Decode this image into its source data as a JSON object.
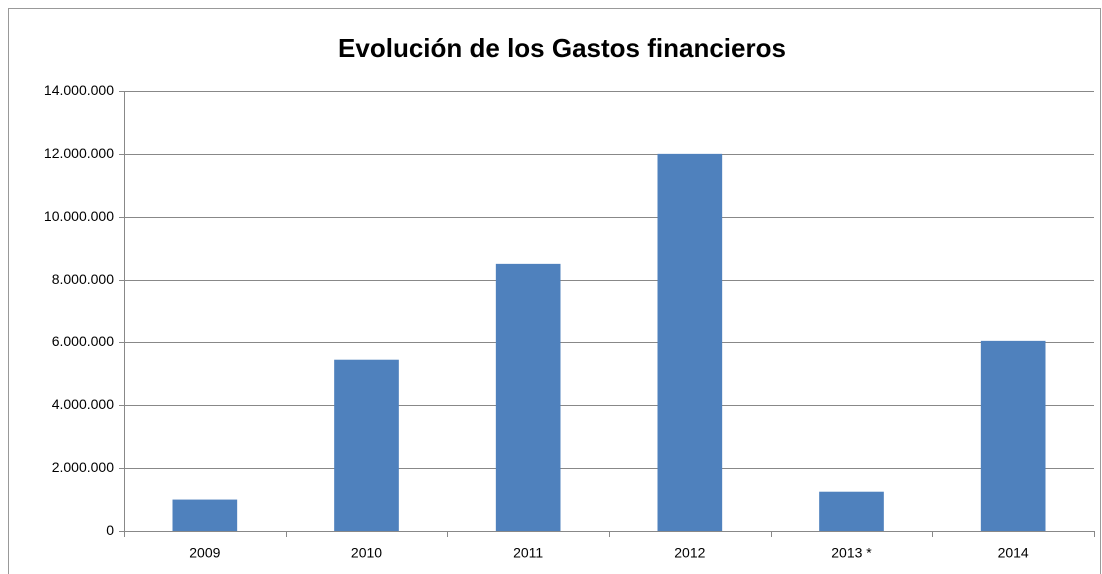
{
  "chart_data": {
    "type": "bar",
    "title": "Evolución de los Gastos financieros",
    "categories": [
      "2009",
      "2010",
      "2011",
      "2012",
      "2013 *",
      "2014"
    ],
    "values": [
      1000000,
      5450000,
      8500000,
      12000000,
      1250000,
      6050000
    ],
    "color": "#4f81bd",
    "ylim": [
      0,
      14000000
    ],
    "yticks": [
      0,
      {
        "value": 2000000,
        "label": "2.000.000"
      },
      {
        "value": 4000000,
        "label": "4.000.000"
      },
      {
        "value": 6000000,
        "label": "6.000.000"
      },
      {
        "value": 8000000,
        "label": "8.000.000"
      },
      {
        "value": 10000000,
        "label": "10.000.000"
      },
      {
        "value": 12000000,
        "label": "12.000.000"
      },
      {
        "value": 14000000,
        "label": "14.000.000"
      }
    ],
    "grid": true
  }
}
